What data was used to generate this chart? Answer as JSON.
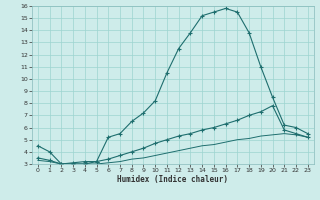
{
  "xlabel": "Humidex (Indice chaleur)",
  "xlim": [
    -0.5,
    23.5
  ],
  "ylim": [
    3,
    16
  ],
  "xticks": [
    0,
    1,
    2,
    3,
    4,
    5,
    6,
    7,
    8,
    9,
    10,
    11,
    12,
    13,
    14,
    15,
    16,
    17,
    18,
    19,
    20,
    21,
    22,
    23
  ],
  "yticks": [
    3,
    4,
    5,
    6,
    7,
    8,
    9,
    10,
    11,
    12,
    13,
    14,
    15,
    16
  ],
  "bg_color": "#ceecea",
  "line_color": "#1e6e6e",
  "grid_color": "#9dd4d0",
  "line1_x": [
    0,
    1,
    2,
    3,
    4,
    5,
    6,
    7,
    8,
    9,
    10,
    11,
    12,
    13,
    14,
    15,
    16,
    17,
    18,
    19,
    20,
    21,
    22,
    23
  ],
  "line1_y": [
    4.5,
    4.0,
    3.0,
    3.0,
    3.0,
    3.2,
    5.2,
    5.5,
    6.5,
    7.2,
    8.2,
    10.5,
    12.5,
    13.8,
    15.2,
    15.5,
    15.8,
    15.5,
    13.8,
    11.0,
    8.5,
    6.2,
    6.0,
    5.5
  ],
  "line2_x": [
    0,
    1,
    2,
    3,
    4,
    5,
    6,
    7,
    8,
    9,
    10,
    11,
    12,
    13,
    14,
    15,
    16,
    17,
    18,
    19,
    20,
    21,
    22,
    23
  ],
  "line2_y": [
    3.5,
    3.3,
    3.0,
    3.1,
    3.2,
    3.2,
    3.4,
    3.7,
    4.0,
    4.3,
    4.7,
    5.0,
    5.3,
    5.5,
    5.8,
    6.0,
    6.3,
    6.6,
    7.0,
    7.3,
    7.8,
    5.8,
    5.5,
    5.2
  ],
  "line3_x": [
    0,
    1,
    2,
    3,
    4,
    5,
    6,
    7,
    8,
    9,
    10,
    11,
    12,
    13,
    14,
    15,
    16,
    17,
    18,
    19,
    20,
    21,
    22,
    23
  ],
  "line3_y": [
    3.3,
    3.2,
    3.0,
    3.0,
    3.0,
    3.0,
    3.1,
    3.2,
    3.4,
    3.5,
    3.7,
    3.9,
    4.1,
    4.3,
    4.5,
    4.6,
    4.8,
    5.0,
    5.1,
    5.3,
    5.4,
    5.5,
    5.4,
    5.2
  ]
}
